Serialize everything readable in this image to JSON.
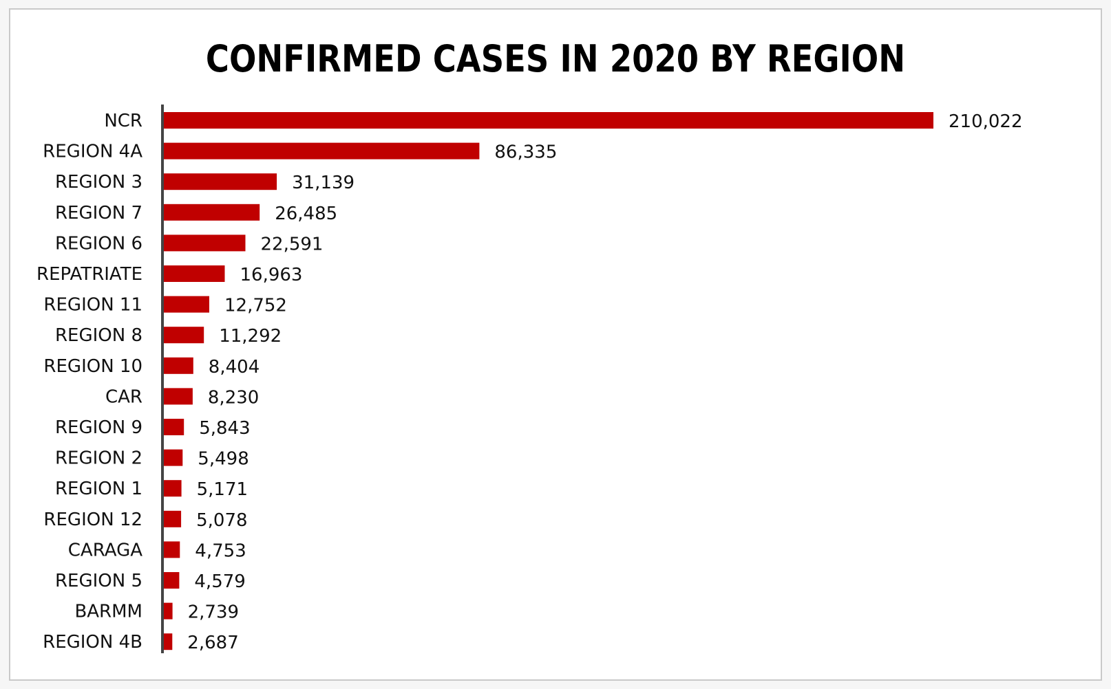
{
  "chart_data": {
    "type": "bar",
    "orientation": "horizontal",
    "title": "CONFIRMED CASES IN 2020 BY REGION",
    "xlabel": "",
    "ylabel": "",
    "grid": false,
    "bar_color": "#c00000",
    "axis_color": "#444444",
    "xlim": [
      0,
      210022
    ],
    "categories": [
      "NCR",
      "REGION 4A",
      "REGION 3",
      "REGION 7",
      "REGION 6",
      "REPATRIATE",
      "REGION 11",
      "REGION 8",
      "REGION 10",
      "CAR",
      "REGION 9",
      "REGION 2",
      "REGION 1",
      "REGION 12",
      "CARAGA",
      "REGION 5",
      "BARMM",
      "REGION 4B"
    ],
    "values": [
      210022,
      86335,
      31139,
      26485,
      22591,
      16963,
      12752,
      11292,
      8404,
      8230,
      5843,
      5498,
      5171,
      5078,
      4753,
      4579,
      2739,
      2687
    ],
    "data_labels": [
      "210,022",
      "86,335",
      "31,139",
      "26,485",
      "22,591",
      "16,963",
      "12,752",
      "11,292",
      "8,404",
      "8,230",
      "5,843",
      "5,498",
      "5,171",
      "5,078",
      "4,753",
      "4,579",
      "2,739",
      "2,687"
    ]
  }
}
